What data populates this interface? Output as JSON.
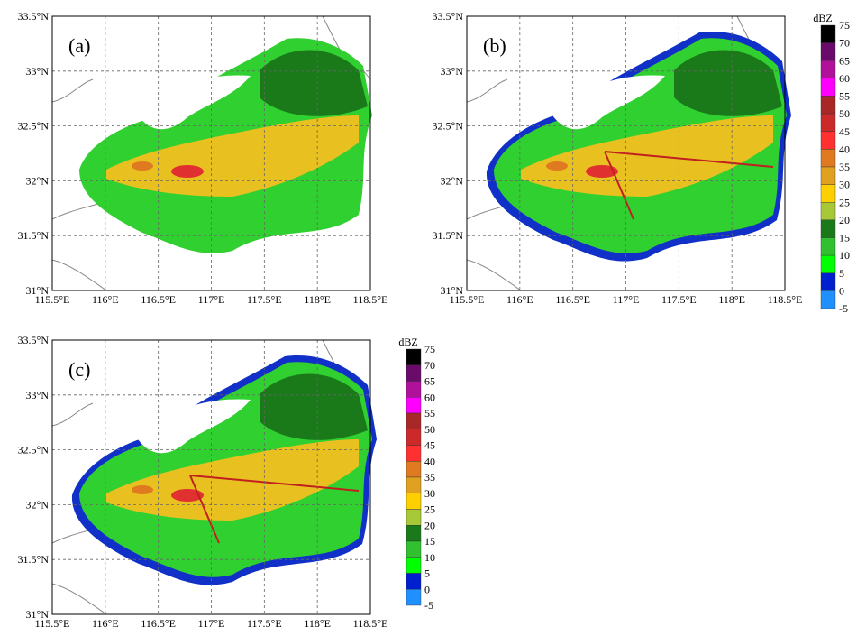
{
  "panels": [
    {
      "label": "(a)"
    },
    {
      "label": "(b)"
    },
    {
      "label": "(c)"
    }
  ],
  "x_ticks": [
    "115.5°E",
    "116°E",
    "116.5°E",
    "117°E",
    "117.5°E",
    "118°E",
    "118.5°E"
  ],
  "y_ticks": [
    "33.5°N",
    "33°N",
    "32.5°N",
    "32°N",
    "31.5°N",
    "31°N"
  ],
  "colorbar": {
    "unit": "dBZ",
    "levels": [
      75,
      70,
      65,
      60,
      55,
      50,
      45,
      40,
      35,
      30,
      25,
      20,
      15,
      10,
      5,
      0,
      -5
    ],
    "colors": [
      "#000000",
      "#6a0a6a",
      "#b0109a",
      "#ff00ff",
      "#a82828",
      "#cc2a2a",
      "#ff3030",
      "#e07a20",
      "#e0a020",
      "#ffd000",
      "#a8c838",
      "#1a7a1a",
      "#30c030",
      "#00ff00",
      "#0020d0",
      "#2090ff",
      "#10c8f0"
    ]
  }
}
